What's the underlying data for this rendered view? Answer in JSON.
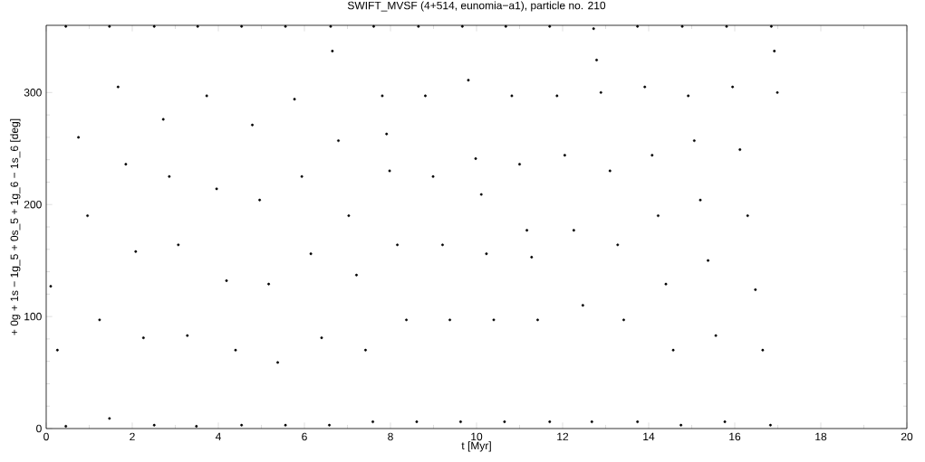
{
  "chart_data": {
    "type": "scatter",
    "title": "SWIFT_MVSF (4+514, eunomia−a1), particle no. 210",
    "xlabel": "t [Myr]",
    "ylabel": "+ 0g + 1s − 1g_5 + 0s_5 + 1g_6 − 1s_6 [deg]",
    "xlim": [
      0,
      20
    ],
    "ylim": [
      0,
      360
    ],
    "xticks": [
      0,
      2,
      4,
      6,
      8,
      10,
      12,
      14,
      16,
      18,
      20
    ],
    "yticks": [
      0,
      100,
      200,
      300
    ],
    "series": [
      {
        "color": "#000000",
        "x": [
          0.105,
          0.26,
          0.456,
          0.456,
          0.75,
          0.96,
          1.24,
          1.47,
          1.47,
          1.67,
          1.85,
          2.08,
          2.26,
          2.51,
          2.51,
          2.72,
          2.86,
          3.07,
          3.28,
          3.49,
          3.52,
          3.73,
          3.96,
          4.19,
          4.4,
          4.54,
          4.54,
          4.79,
          4.96,
          5.17,
          5.38,
          5.56,
          5.56,
          5.77,
          5.94,
          6.15,
          6.4,
          6.58,
          6.61,
          6.65,
          6.79,
          7.03,
          7.21,
          7.42,
          7.59,
          7.61,
          7.81,
          7.91,
          7.98,
          8.16,
          8.37,
          8.61,
          8.65,
          8.81,
          8.99,
          9.21,
          9.38,
          9.63,
          9.67,
          9.81,
          9.98,
          10.11,
          10.23,
          10.4,
          10.65,
          10.68,
          10.82,
          11.0,
          11.17,
          11.28,
          11.42,
          11.7,
          11.7,
          11.87,
          12.05,
          12.26,
          12.47,
          12.68,
          12.72,
          12.79,
          12.89,
          13.1,
          13.28,
          13.42,
          13.74,
          13.74,
          13.91,
          14.08,
          14.22,
          14.4,
          14.57,
          14.75,
          14.78,
          14.92,
          15.06,
          15.2,
          15.38,
          15.56,
          15.77,
          15.81,
          15.95,
          16.12,
          16.3,
          16.48,
          16.65,
          16.83,
          16.85,
          16.92,
          16.99
        ],
        "values": [
          127,
          70,
          2,
          359,
          260,
          190,
          97,
          9,
          359,
          305,
          236,
          158,
          81,
          3,
          359,
          276,
          225,
          164,
          83,
          2,
          359,
          297,
          214,
          132,
          70,
          3,
          359,
          271,
          204,
          129,
          59,
          3,
          359,
          294,
          225,
          156,
          81,
          3,
          359,
          337,
          257,
          190,
          137,
          70,
          6,
          359,
          297,
          263,
          230,
          164,
          97,
          6,
          359,
          297,
          225,
          164,
          97,
          6,
          359,
          311,
          241,
          209,
          156,
          97,
          6,
          359,
          297,
          236,
          177,
          153,
          97,
          6,
          359,
          297,
          244,
          177,
          110,
          6,
          357,
          329,
          300,
          230,
          164,
          97,
          6,
          359,
          305,
          244,
          190,
          129,
          70,
          3,
          359,
          297,
          257,
          204,
          150,
          83,
          6,
          359,
          305,
          249,
          190,
          124,
          70,
          3,
          359,
          337,
          300
        ]
      }
    ]
  }
}
